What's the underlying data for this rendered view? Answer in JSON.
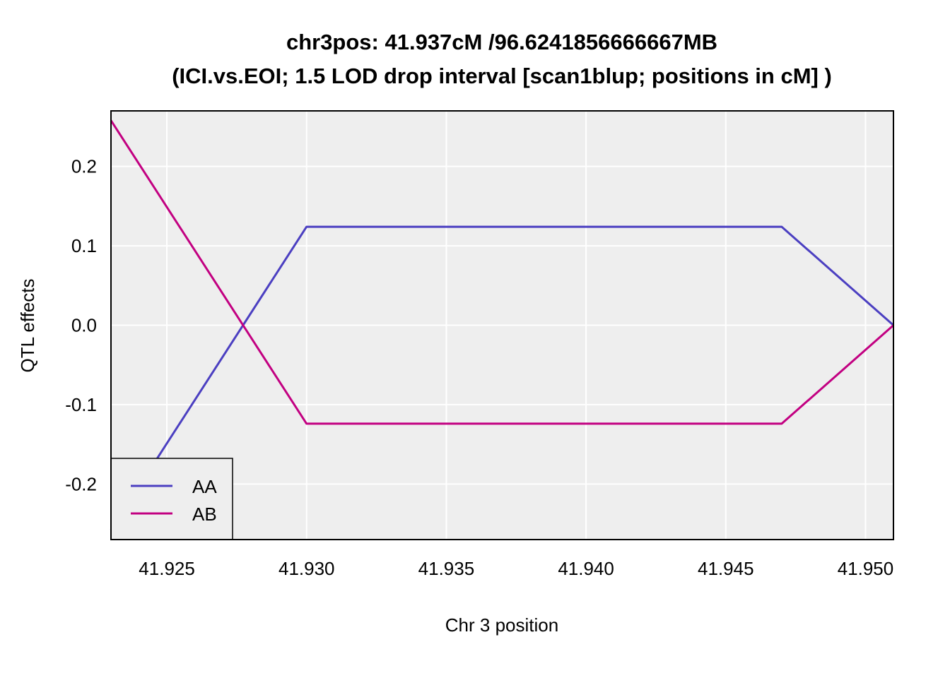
{
  "chart_data": {
    "type": "line",
    "title_line1": "chr3pos: 41.937cM /96.6241856666667MB",
    "title_line2": "(ICI.vs.EOI; 1.5 LOD drop interval [scan1blup; positions in cM] )",
    "xlabel": "Chr 3 position",
    "ylabel": "QTL effects",
    "xlim": [
      41.923,
      41.951
    ],
    "ylim": [
      -0.27,
      0.27
    ],
    "x_ticks": [
      41.925,
      41.93,
      41.935,
      41.94,
      41.945,
      41.95
    ],
    "x_tick_labels": [
      "41.925",
      "41.930",
      "41.935",
      "41.940",
      "41.945",
      "41.950"
    ],
    "y_ticks": [
      -0.2,
      -0.1,
      0.0,
      0.1,
      0.2
    ],
    "y_tick_labels": [
      "-0.2",
      "-0.1",
      "0.0",
      "0.1",
      "0.2"
    ],
    "grid": true,
    "background": "#eeeeee",
    "legend_position": "bottom-left",
    "series": [
      {
        "name": "AA",
        "color": "#4b3fc1",
        "x": [
          41.923,
          41.93,
          41.947,
          41.951
        ],
        "y": [
          -0.258,
          0.124,
          0.124,
          0.0
        ]
      },
      {
        "name": "AB",
        "color": "#c20081",
        "x": [
          41.923,
          41.93,
          41.947,
          41.951
        ],
        "y": [
          0.258,
          -0.124,
          -0.124,
          0.0
        ]
      }
    ]
  }
}
